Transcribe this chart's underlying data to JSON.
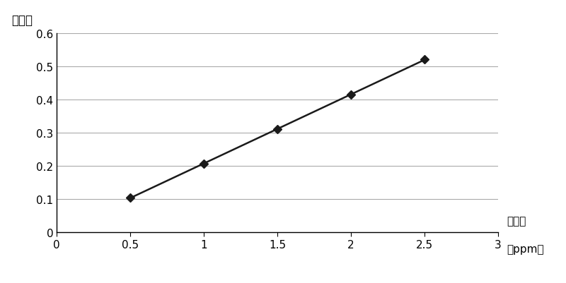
{
  "x_data": [
    0.5,
    1.0,
    1.5,
    2.0,
    2.5
  ],
  "y_data": [
    0.103,
    0.207,
    0.31,
    0.415,
    0.521
  ],
  "xlabel": "鐵浓度",
  "xlabel_sub": "（ppm）",
  "ylabel": "吸光度",
  "xlim": [
    0,
    3
  ],
  "ylim": [
    0,
    0.6
  ],
  "xticks": [
    0,
    0.5,
    1.0,
    1.5,
    2.0,
    2.5,
    3.0
  ],
  "yticks": [
    0,
    0.1,
    0.2,
    0.3,
    0.4,
    0.5,
    0.6
  ],
  "line_color": "#1a1a1a",
  "marker_color": "#1a1a1a",
  "grid_color": "#aaaaaa",
  "background_color": "#ffffff",
  "marker_size": 6,
  "line_width": 1.8,
  "x_line_start": 0.5,
  "x_line_end": 2.5
}
